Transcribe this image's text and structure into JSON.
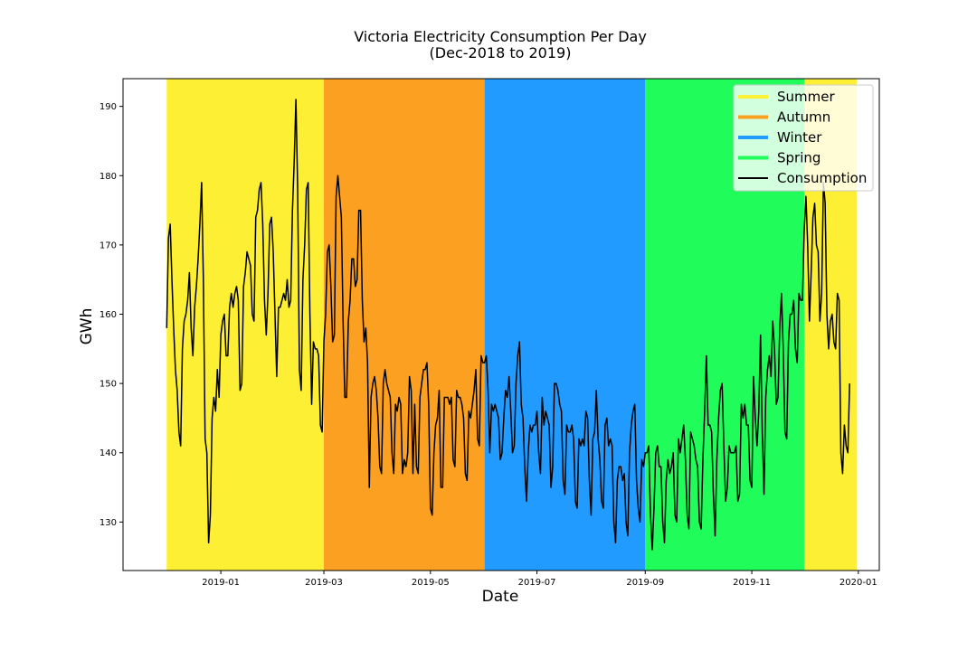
{
  "chart_data": {
    "type": "line",
    "title": "Victoria Electricity Consumption Per Day",
    "subtitle": "(Dec-2018 to 2019)",
    "xlabel": "Date",
    "ylabel": "GWh",
    "x_range": [
      "2018-11-06",
      "2020-01-13"
    ],
    "ylim": [
      123,
      194
    ],
    "x_ticks": [
      "2019-01-01",
      "2019-03-01",
      "2019-05-01",
      "2019-07-01",
      "2019-09-01",
      "2019-11-01",
      "2020-01-01"
    ],
    "x_tick_labels": [
      "2019-01",
      "2019-03",
      "2019-05",
      "2019-07",
      "2019-09",
      "2019-11",
      "2020-01"
    ],
    "y_ticks": [
      130,
      140,
      150,
      160,
      170,
      180,
      190
    ],
    "grid": false,
    "legend_position": "top-right",
    "legend": [
      "Summer",
      "Autumn",
      "Winter",
      "Spring",
      "Consumption"
    ],
    "colors": {
      "summer": "#fdef34",
      "autumn": "#fba021",
      "winter": "#219bff",
      "spring": "#20fd5b",
      "line": "#000000"
    },
    "season_bands": [
      {
        "name": "Summer",
        "start": "2018-12-01",
        "end": "2019-03-01"
      },
      {
        "name": "Autumn",
        "start": "2019-03-01",
        "end": "2019-06-01"
      },
      {
        "name": "Winter",
        "start": "2019-06-01",
        "end": "2019-09-01"
      },
      {
        "name": "Spring",
        "start": "2019-09-01",
        "end": "2019-12-01"
      },
      {
        "name": "Summer",
        "start": "2019-12-01",
        "end": "2019-12-31"
      }
    ],
    "series": [
      {
        "name": "Consumption",
        "x_start": "2018-12-01",
        "step": "1 day",
        "values": [
          158,
          171,
          173,
          165,
          158,
          152,
          149,
          143,
          141,
          155,
          159,
          160,
          162,
          166,
          158,
          154,
          161,
          164,
          168,
          173,
          179,
          165,
          142,
          140,
          127,
          131,
          145,
          148,
          146,
          152,
          148,
          157,
          159,
          160,
          154,
          154,
          161,
          163,
          161,
          163,
          164,
          162,
          149,
          150,
          164,
          166,
          169,
          168,
          167,
          160,
          159,
          174,
          175,
          178,
          179,
          173,
          162,
          157,
          163,
          173,
          174,
          169,
          160,
          151,
          161,
          161,
          162,
          163,
          162,
          165,
          161,
          162,
          175,
          182,
          191,
          178,
          152,
          149,
          165,
          170,
          178,
          179,
          160,
          147,
          156,
          155,
          155,
          154,
          144,
          143,
          156,
          160,
          169,
          170,
          164,
          156,
          157,
          177,
          180,
          177,
          174,
          159,
          148,
          148,
          159,
          162,
          168,
          168,
          164,
          165,
          175,
          175,
          162,
          156,
          158,
          153,
          135,
          148,
          150,
          151,
          149,
          145,
          138,
          137,
          150,
          152,
          150,
          149,
          148,
          140,
          137,
          147,
          146,
          148,
          147,
          137,
          139,
          138,
          140,
          151,
          149,
          137,
          147,
          138,
          137,
          148,
          150,
          152,
          152,
          153,
          147,
          132,
          131,
          140,
          144,
          145,
          149,
          135,
          135,
          148,
          148,
          148,
          147,
          148,
          139,
          138,
          149,
          148,
          148,
          147,
          145,
          137,
          136,
          146,
          145,
          147,
          149,
          152,
          142,
          141,
          154,
          153,
          153,
          154,
          149,
          140,
          147,
          146,
          147,
          146,
          145,
          139,
          140,
          145,
          149,
          148,
          151,
          146,
          140,
          141,
          150,
          154,
          156,
          147,
          145,
          138,
          133,
          140,
          144,
          143,
          144,
          144,
          146,
          140,
          137,
          148,
          144,
          146,
          145,
          144,
          135,
          138,
          150,
          150,
          149,
          147,
          146,
          136,
          134,
          144,
          143,
          143,
          144,
          142,
          133,
          132,
          142,
          141,
          142,
          141,
          146,
          145,
          136,
          131,
          142,
          143,
          149,
          142,
          139,
          133,
          132,
          144,
          145,
          141,
          142,
          141,
          130,
          127,
          136,
          138,
          138,
          136,
          137,
          130,
          128,
          140,
          144,
          146,
          147,
          136,
          132,
          130,
          139,
          138,
          140,
          140,
          141,
          131,
          126,
          132,
          140,
          141,
          138,
          138,
          130,
          127,
          136,
          139,
          137,
          138,
          140,
          131,
          130,
          142,
          140,
          142,
          144,
          139,
          131,
          129,
          143,
          142,
          141,
          139,
          138,
          130,
          129,
          139,
          146,
          154,
          144,
          144,
          143,
          134,
          128,
          139,
          145,
          149,
          150,
          141,
          133,
          135,
          141,
          140,
          140,
          140,
          141,
          133,
          134,
          147,
          145,
          147,
          144,
          144,
          136,
          135,
          151,
          145,
          141,
          146,
          157,
          143,
          134,
          148,
          152,
          154,
          151,
          159,
          155,
          147,
          148,
          158,
          163,
          155,
          143,
          142,
          156,
          160,
          160,
          162,
          155,
          153,
          163,
          162,
          162,
          172,
          177,
          170,
          159,
          166,
          174,
          176,
          170,
          169,
          159,
          163,
          179,
          176,
          160,
          155,
          159,
          160,
          156,
          155,
          163,
          162,
          140,
          137,
          144,
          141,
          140,
          150
        ]
      }
    ]
  }
}
